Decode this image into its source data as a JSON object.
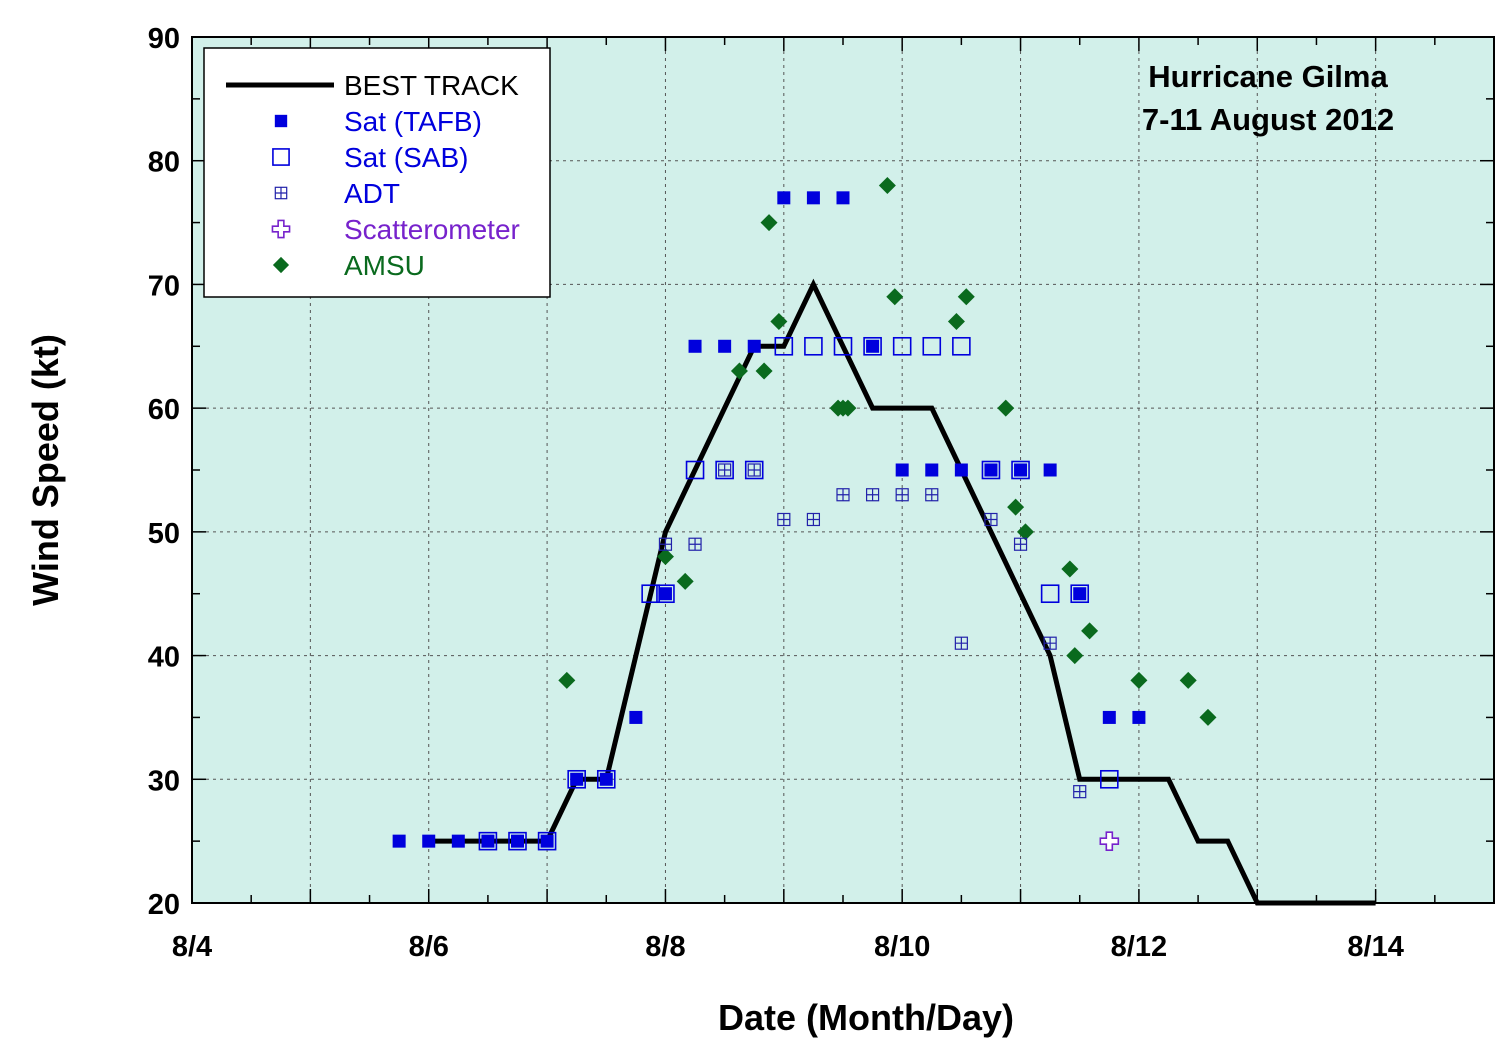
{
  "chart_data": {
    "type": "scatter",
    "title_lines": [
      "Hurricane Gilma",
      "7-11 August 2012"
    ],
    "xlabel": "Date (Month/Day)",
    "ylabel": "Wind Speed (kt)",
    "xlim": [
      "2012-08-04T00:00",
      "2012-08-15T00:00"
    ],
    "ylim": [
      20,
      90
    ],
    "x_ticks": [
      {
        "date": "2012-08-04T00:00",
        "label": "8/4"
      },
      {
        "date": "2012-08-06T00:00",
        "label": "8/6"
      },
      {
        "date": "2012-08-08T00:00",
        "label": "8/8"
      },
      {
        "date": "2012-08-10T00:00",
        "label": "8/10"
      },
      {
        "date": "2012-08-12T00:00",
        "label": "8/12"
      },
      {
        "date": "2012-08-14T00:00",
        "label": "8/14"
      }
    ],
    "y_ticks": [
      "20",
      "30",
      "40",
      "50",
      "60",
      "70",
      "80",
      "90"
    ],
    "grid": true,
    "plot_background": "#d2f0ea",
    "legend_position": "top-left",
    "series": [
      {
        "name": "BEST TRACK",
        "marker": "line",
        "color": "#000000",
        "text_color": "#000000",
        "points": [
          [
            "2012-08-06T00:00",
            25
          ],
          [
            "2012-08-06T06:00",
            25
          ],
          [
            "2012-08-06T12:00",
            25
          ],
          [
            "2012-08-06T18:00",
            25
          ],
          [
            "2012-08-07T00:00",
            25
          ],
          [
            "2012-08-07T06:00",
            30
          ],
          [
            "2012-08-07T12:00",
            30
          ],
          [
            "2012-08-07T18:00",
            40
          ],
          [
            "2012-08-08T00:00",
            50
          ],
          [
            "2012-08-08T06:00",
            55
          ],
          [
            "2012-08-08T12:00",
            60
          ],
          [
            "2012-08-08T18:00",
            65
          ],
          [
            "2012-08-09T00:00",
            65
          ],
          [
            "2012-08-09T06:00",
            70
          ],
          [
            "2012-08-09T12:00",
            65
          ],
          [
            "2012-08-09T18:00",
            60
          ],
          [
            "2012-08-10T00:00",
            60
          ],
          [
            "2012-08-10T06:00",
            60
          ],
          [
            "2012-08-10T12:00",
            55
          ],
          [
            "2012-08-10T18:00",
            50
          ],
          [
            "2012-08-11T00:00",
            45
          ],
          [
            "2012-08-11T06:00",
            40
          ],
          [
            "2012-08-11T12:00",
            30
          ],
          [
            "2012-08-11T18:00",
            30
          ],
          [
            "2012-08-12T00:00",
            30
          ],
          [
            "2012-08-12T06:00",
            30
          ],
          [
            "2012-08-12T12:00",
            25
          ],
          [
            "2012-08-12T18:00",
            25
          ],
          [
            "2012-08-13T00:00",
            20
          ],
          [
            "2012-08-13T06:00",
            20
          ],
          [
            "2012-08-13T12:00",
            20
          ],
          [
            "2012-08-13T18:00",
            20
          ],
          [
            "2012-08-14T00:00",
            20
          ]
        ]
      },
      {
        "name": "Sat (TAFB)",
        "marker": "filled-square",
        "color": "#0000dd",
        "text_color": "#0000dd",
        "points": [
          [
            "2012-08-05T18:00",
            25
          ],
          [
            "2012-08-06T00:00",
            25
          ],
          [
            "2012-08-06T06:00",
            25
          ],
          [
            "2012-08-06T12:00",
            25
          ],
          [
            "2012-08-06T18:00",
            25
          ],
          [
            "2012-08-07T00:00",
            25
          ],
          [
            "2012-08-07T06:00",
            30
          ],
          [
            "2012-08-07T12:00",
            30
          ],
          [
            "2012-08-07T18:00",
            35
          ],
          [
            "2012-08-08T00:00",
            45
          ],
          [
            "2012-08-08T06:00",
            65
          ],
          [
            "2012-08-08T12:00",
            65
          ],
          [
            "2012-08-08T18:00",
            65
          ],
          [
            "2012-08-09T00:00",
            77
          ],
          [
            "2012-08-09T06:00",
            77
          ],
          [
            "2012-08-09T12:00",
            77
          ],
          [
            "2012-08-09T18:00",
            65
          ],
          [
            "2012-08-10T00:00",
            55
          ],
          [
            "2012-08-10T06:00",
            55
          ],
          [
            "2012-08-10T12:00",
            55
          ],
          [
            "2012-08-10T18:00",
            55
          ],
          [
            "2012-08-11T00:00",
            55
          ],
          [
            "2012-08-11T06:00",
            55
          ],
          [
            "2012-08-11T12:00",
            45
          ],
          [
            "2012-08-11T18:00",
            35
          ],
          [
            "2012-08-12T00:00",
            35
          ]
        ]
      },
      {
        "name": "Sat (SAB)",
        "marker": "open-square",
        "color": "#0000dd",
        "text_color": "#0000dd",
        "points": [
          [
            "2012-08-06T12:00",
            25
          ],
          [
            "2012-08-06T18:00",
            25
          ],
          [
            "2012-08-07T00:00",
            25
          ],
          [
            "2012-08-07T06:00",
            30
          ],
          [
            "2012-08-07T12:00",
            30
          ],
          [
            "2012-08-07T21:00",
            45
          ],
          [
            "2012-08-08T00:00",
            45
          ],
          [
            "2012-08-08T06:00",
            55
          ],
          [
            "2012-08-08T12:00",
            55
          ],
          [
            "2012-08-08T18:00",
            55
          ],
          [
            "2012-08-09T00:00",
            65
          ],
          [
            "2012-08-09T06:00",
            65
          ],
          [
            "2012-08-09T12:00",
            65
          ],
          [
            "2012-08-09T18:00",
            65
          ],
          [
            "2012-08-10T00:00",
            65
          ],
          [
            "2012-08-10T06:00",
            65
          ],
          [
            "2012-08-10T12:00",
            65
          ],
          [
            "2012-08-10T18:00",
            55
          ],
          [
            "2012-08-11T00:00",
            55
          ],
          [
            "2012-08-11T06:00",
            45
          ],
          [
            "2012-08-11T12:00",
            45
          ],
          [
            "2012-08-11T18:00",
            30
          ]
        ]
      },
      {
        "name": "ADT",
        "marker": "boxed-plus",
        "color": "#2222aa",
        "text_color": "#0000dd",
        "points": [
          [
            "2012-08-08T00:00",
            49
          ],
          [
            "2012-08-08T06:00",
            49
          ],
          [
            "2012-08-08T12:00",
            55
          ],
          [
            "2012-08-08T18:00",
            55
          ],
          [
            "2012-08-09T00:00",
            51
          ],
          [
            "2012-08-09T06:00",
            51
          ],
          [
            "2012-08-09T12:00",
            53
          ],
          [
            "2012-08-09T18:00",
            53
          ],
          [
            "2012-08-10T00:00",
            53
          ],
          [
            "2012-08-10T06:00",
            53
          ],
          [
            "2012-08-10T12:00",
            41
          ],
          [
            "2012-08-10T18:00",
            51
          ],
          [
            "2012-08-11T00:00",
            49
          ],
          [
            "2012-08-11T06:00",
            41
          ],
          [
            "2012-08-11T12:00",
            29
          ]
        ]
      },
      {
        "name": "Scatterometer",
        "marker": "open-cross",
        "color": "#7722cc",
        "text_color": "#7722cc",
        "points": [
          [
            "2012-08-11T18:00",
            25
          ]
        ]
      },
      {
        "name": "AMSU",
        "marker": "diamond",
        "color": "#0a6a1e",
        "text_color": "#0a6a1e",
        "points": [
          [
            "2012-08-07T04:00",
            38
          ],
          [
            "2012-08-08T00:00",
            48
          ],
          [
            "2012-08-08T04:00",
            46
          ],
          [
            "2012-08-08T15:00",
            63
          ],
          [
            "2012-08-08T20:00",
            63
          ],
          [
            "2012-08-08T21:00",
            75
          ],
          [
            "2012-08-08T23:00",
            67
          ],
          [
            "2012-08-09T11:00",
            60
          ],
          [
            "2012-08-09T12:00",
            60
          ],
          [
            "2012-08-09T13:00",
            60
          ],
          [
            "2012-08-09T21:00",
            78
          ],
          [
            "2012-08-09T22:30",
            69
          ],
          [
            "2012-08-10T11:00",
            67
          ],
          [
            "2012-08-10T13:00",
            69
          ],
          [
            "2012-08-10T21:00",
            60
          ],
          [
            "2012-08-11T01:00",
            50
          ],
          [
            "2012-08-10T23:00",
            52
          ],
          [
            "2012-08-11T10:00",
            47
          ],
          [
            "2012-08-11T11:00",
            40
          ],
          [
            "2012-08-11T14:00",
            42
          ],
          [
            "2012-08-12T00:00",
            38
          ],
          [
            "2012-08-12T10:00",
            38
          ],
          [
            "2012-08-12T14:00",
            35
          ]
        ]
      }
    ]
  }
}
